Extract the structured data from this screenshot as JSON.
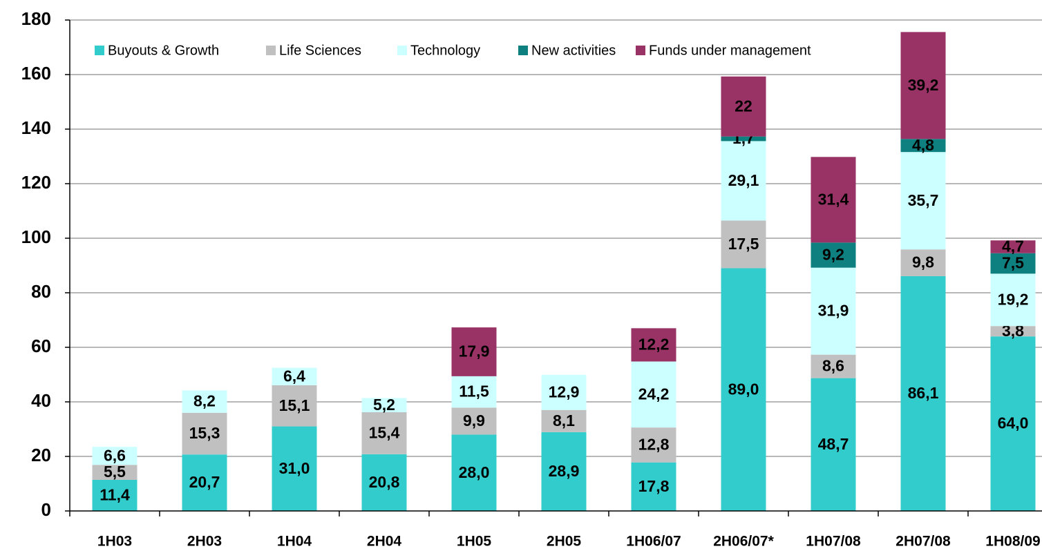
{
  "chart_data": {
    "type": "stacked_bar",
    "categories": [
      "1H03",
      "2H03",
      "1H04",
      "2H04",
      "1H05",
      "2H05",
      "1H06/07",
      "2H06/07*",
      "1H07/08",
      "2H07/08",
      "1H08/09"
    ],
    "series": [
      {
        "name": "Buyouts & Growth",
        "color": "#33cccc",
        "values": [
          11.4,
          20.7,
          31.0,
          20.8,
          28.0,
          28.9,
          17.8,
          89.0,
          48.7,
          86.1,
          64.0
        ],
        "value_labels": [
          "11,4",
          "20,7",
          "31,0",
          "20,8",
          "28,0",
          "28,9",
          "17,8",
          "89,0",
          "48,7",
          "86,1",
          "64,0"
        ]
      },
      {
        "name": "Life Sciences",
        "color": "#c0c0c0",
        "values": [
          5.5,
          15.3,
          15.1,
          15.4,
          9.9,
          8.1,
          12.8,
          17.5,
          8.6,
          9.8,
          3.8
        ],
        "value_labels": [
          "5,5",
          "15,3",
          "15,1",
          "15,4",
          "9,9",
          "8,1",
          "12,8",
          "17,5",
          "8,6",
          "9,8",
          "3,8"
        ]
      },
      {
        "name": "Technology",
        "color": "#ccffff",
        "values": [
          6.6,
          8.2,
          6.4,
          5.2,
          11.5,
          12.9,
          24.2,
          29.1,
          31.9,
          35.7,
          19.2
        ],
        "value_labels": [
          "6,6",
          "8,2",
          "6,4",
          "5,2",
          "11,5",
          "12,9",
          "24,2",
          "29,1",
          "31,9",
          "35,7",
          "19,2"
        ]
      },
      {
        "name": "New activities",
        "color": "#0f8080",
        "values": [
          null,
          null,
          null,
          null,
          null,
          null,
          null,
          1.7,
          9.2,
          4.8,
          7.5
        ],
        "value_labels": [
          null,
          null,
          null,
          null,
          null,
          null,
          null,
          "1,7",
          "9,2",
          "4,8",
          "7,5"
        ]
      },
      {
        "name": "Funds under management",
        "color": "#993366",
        "values": [
          null,
          null,
          null,
          null,
          17.9,
          null,
          12.2,
          22,
          31.4,
          39.2,
          4.7
        ],
        "value_labels": [
          null,
          null,
          null,
          null,
          "17,9",
          null,
          "12,2",
          "22",
          "31,4",
          "39,2",
          "4,7"
        ]
      }
    ],
    "ylim": [
      0,
      180
    ],
    "yticks": [
      0,
      20,
      40,
      60,
      80,
      100,
      120,
      140,
      160,
      180
    ],
    "grid": true,
    "legend": "top"
  }
}
